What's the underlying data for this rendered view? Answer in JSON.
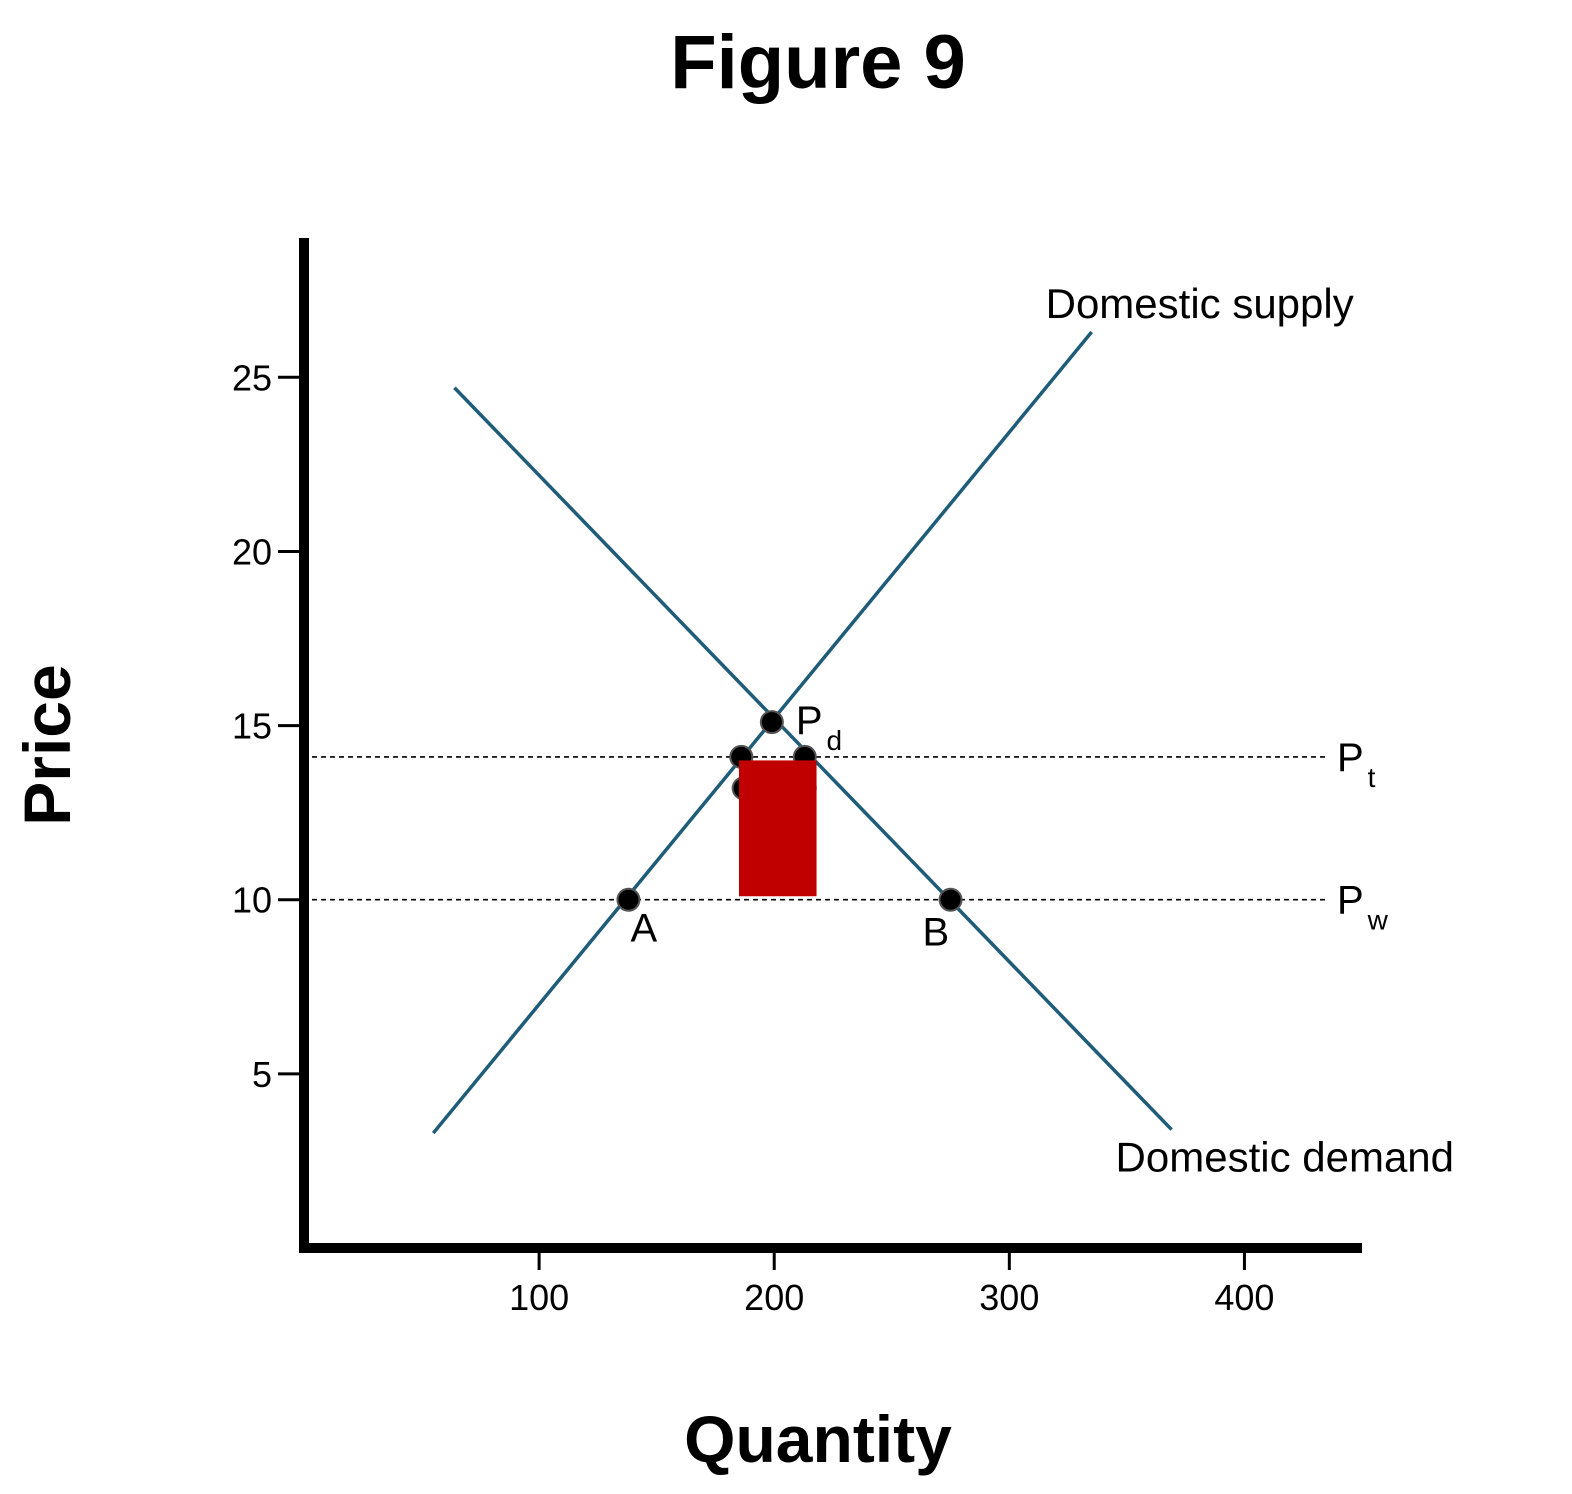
{
  "chart_data": {
    "type": "line",
    "title": "Figure 9",
    "xlabel": "Quantity",
    "ylabel": "Price",
    "xlim": [
      0,
      450
    ],
    "ylim": [
      0,
      29
    ],
    "x_ticks": [
      "100",
      "200",
      "300",
      "400"
    ],
    "x_tick_values": [
      100,
      200,
      300,
      400
    ],
    "y_ticks": [
      "5",
      "10",
      "15",
      "20",
      "25"
    ],
    "y_tick_values": [
      5,
      10,
      15,
      20,
      25
    ],
    "grid": false,
    "colors": {
      "curves": "#1f5c7a",
      "area": "#c00000",
      "axis": "#000000"
    },
    "series": [
      {
        "name": "Domestic supply",
        "x": [
          55,
          335
        ],
        "y": [
          3.3,
          26.3
        ]
      },
      {
        "name": "Domestic demand",
        "x": [
          64,
          369
        ],
        "y": [
          24.7,
          3.4
        ]
      }
    ],
    "reference_lines": [
      {
        "label_main": "P",
        "label_sub": "t",
        "y": 14.1,
        "x_range": [
          0,
          430
        ]
      },
      {
        "label_main": "P",
        "label_sub": "w",
        "y": 10,
        "x_range": [
          0,
          430
        ]
      }
    ],
    "points": [
      {
        "label_main": "P",
        "label_sub": "d",
        "x": 199,
        "y": 15.1
      },
      {
        "label_main": "A",
        "label_sub": "",
        "x": 138,
        "y": 10
      },
      {
        "label_main": "B",
        "label_sub": "",
        "x": 275,
        "y": 10
      },
      {
        "label_main": "",
        "label_sub": "",
        "x": 186,
        "y": 14.1
      },
      {
        "label_main": "",
        "label_sub": "",
        "x": 213,
        "y": 14.1
      },
      {
        "label_main": "",
        "label_sub": "",
        "x": 187,
        "y": 13.2
      },
      {
        "label_main": "",
        "label_sub": "",
        "x": 213,
        "y": 13.2
      }
    ],
    "shaded_area": {
      "x": [
        185,
        218
      ],
      "y": [
        10.1,
        14
      ]
    }
  }
}
